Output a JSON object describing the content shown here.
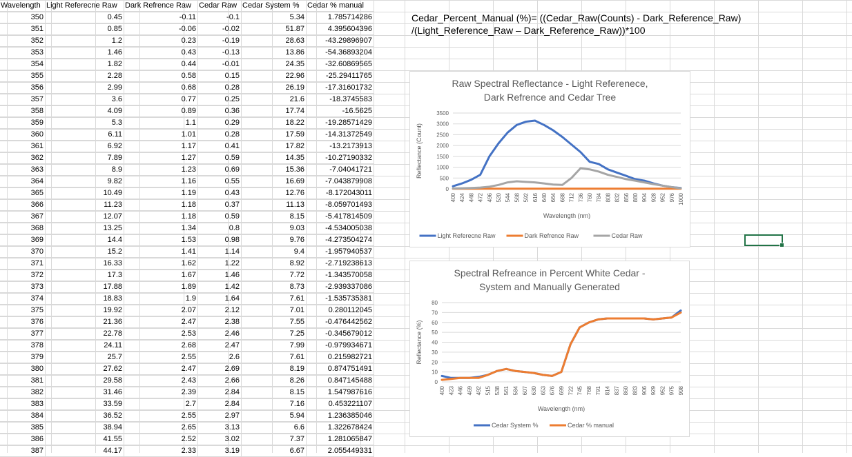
{
  "table": {
    "headers": [
      "Wavelength",
      "Light Referecne Raw",
      "Dark Refrence Raw",
      "Cedar Raw",
      "Cedar System  %",
      "Cedar % manual"
    ],
    "rows": [
      [
        "350",
        "0.45",
        "-0.11",
        "-0.1",
        "5.34",
        "1.785714286"
      ],
      [
        "351",
        "0.85",
        "-0.06",
        "-0.02",
        "51.87",
        "4.395604396"
      ],
      [
        "352",
        "1.2",
        "0.23",
        "-0.19",
        "28.63",
        "-43.29896907"
      ],
      [
        "353",
        "1.46",
        "0.43",
        "-0.13",
        "13.86",
        "-54.36893204"
      ],
      [
        "354",
        "1.82",
        "0.44",
        "-0.01",
        "24.35",
        "-32.60869565"
      ],
      [
        "355",
        "2.28",
        "0.58",
        "0.15",
        "22.96",
        "-25.29411765"
      ],
      [
        "356",
        "2.99",
        "0.68",
        "0.28",
        "26.19",
        "-17.31601732"
      ],
      [
        "357",
        "3.6",
        "0.77",
        "0.25",
        "21.6",
        "-18.3745583"
      ],
      [
        "358",
        "4.09",
        "0.89",
        "0.36",
        "17.74",
        "-16.5625"
      ],
      [
        "359",
        "5.3",
        "1.1",
        "0.29",
        "18.22",
        "-19.28571429"
      ],
      [
        "360",
        "6.11",
        "1.01",
        "0.28",
        "17.59",
        "-14.31372549"
      ],
      [
        "361",
        "6.92",
        "1.17",
        "0.41",
        "17.82",
        "-13.2173913"
      ],
      [
        "362",
        "7.89",
        "1.27",
        "0.59",
        "14.35",
        "-10.27190332"
      ],
      [
        "363",
        "8.9",
        "1.23",
        "0.69",
        "15.36",
        "-7.04041721"
      ],
      [
        "364",
        "9.82",
        "1.16",
        "0.55",
        "16.69",
        "-7.043879908"
      ],
      [
        "365",
        "10.49",
        "1.19",
        "0.43",
        "12.76",
        "-8.172043011"
      ],
      [
        "366",
        "11.23",
        "1.18",
        "0.37",
        "11.13",
        "-8.059701493"
      ],
      [
        "367",
        "12.07",
        "1.18",
        "0.59",
        "8.15",
        "-5.417814509"
      ],
      [
        "368",
        "13.25",
        "1.34",
        "0.8",
        "9.03",
        "-4.534005038"
      ],
      [
        "369",
        "14.4",
        "1.53",
        "0.98",
        "9.76",
        "-4.273504274"
      ],
      [
        "370",
        "15.2",
        "1.41",
        "1.14",
        "9.4",
        "-1.957940537"
      ],
      [
        "371",
        "16.33",
        "1.62",
        "1.22",
        "8.92",
        "-2.719238613"
      ],
      [
        "372",
        "17.3",
        "1.67",
        "1.46",
        "7.72",
        "-1.343570058"
      ],
      [
        "373",
        "17.88",
        "1.89",
        "1.42",
        "8.73",
        "-2.939337086"
      ],
      [
        "374",
        "18.83",
        "1.9",
        "1.64",
        "7.61",
        "-1.535735381"
      ],
      [
        "375",
        "19.92",
        "2.07",
        "2.12",
        "7.01",
        "0.280112045"
      ],
      [
        "376",
        "21.36",
        "2.47",
        "2.38",
        "7.55",
        "-0.476442562"
      ],
      [
        "377",
        "22.78",
        "2.53",
        "2.46",
        "7.25",
        "-0.345679012"
      ],
      [
        "378",
        "24.11",
        "2.68",
        "2.47",
        "7.99",
        "-0.979934671"
      ],
      [
        "379",
        "25.7",
        "2.55",
        "2.6",
        "7.61",
        "0.215982721"
      ],
      [
        "380",
        "27.62",
        "2.47",
        "2.69",
        "8.19",
        "0.874751491"
      ],
      [
        "381",
        "29.58",
        "2.43",
        "2.66",
        "8.26",
        "0.847145488"
      ],
      [
        "382",
        "31.46",
        "2.39",
        "2.84",
        "8.15",
        "1.547987616"
      ],
      [
        "383",
        "33.59",
        "2.7",
        "2.84",
        "7.16",
        "0.453221107"
      ],
      [
        "384",
        "36.52",
        "2.55",
        "2.97",
        "5.94",
        "1.236385046"
      ],
      [
        "385",
        "38.94",
        "2.65",
        "3.13",
        "6.6",
        "1.322678424"
      ],
      [
        "386",
        "41.55",
        "2.52",
        "3.02",
        "7.37",
        "1.281065847"
      ],
      [
        "387",
        "44.17",
        "2.33",
        "3.19",
        "6.67",
        "2.055449331"
      ]
    ]
  },
  "formula": {
    "line1": "Cedar_Percent_Manual (%)= ((Cedar_Raw(Counts) - Dark_Reference_Raw)",
    "line2": "/(Light_Reference_Raw – Dark_Reference_Raw))*100"
  },
  "chart_data": [
    {
      "type": "line",
      "title": [
        "Raw Spectral Reflectance - Light Referenece,",
        "Dark Refrence and Cedar Tree"
      ],
      "xlabel": "Wavelength (nm)",
      "ylabel": "Reflectance (Count)",
      "ylim": [
        0,
        3500
      ],
      "yticks": [
        0,
        500,
        1000,
        1500,
        2000,
        2500,
        3000,
        3500
      ],
      "xticks": [
        "400",
        "424",
        "448",
        "472",
        "496",
        "520",
        "544",
        "568",
        "592",
        "616",
        "640",
        "664",
        "688",
        "712",
        "736",
        "760",
        "784",
        "808",
        "832",
        "856",
        "880",
        "904",
        "928",
        "952",
        "976",
        "1000"
      ],
      "legend_position": "bottom",
      "series": [
        {
          "name": "Light Referecne Raw",
          "color": "#4472c4",
          "x": [
            400,
            424,
            448,
            472,
            496,
            520,
            544,
            568,
            592,
            616,
            640,
            664,
            688,
            712,
            736,
            760,
            784,
            808,
            832,
            856,
            880,
            904,
            928,
            952,
            976,
            1000
          ],
          "y": [
            120,
            250,
            420,
            650,
            1500,
            2100,
            2600,
            2950,
            3100,
            3150,
            2950,
            2700,
            2400,
            2050,
            1700,
            1250,
            1150,
            900,
            750,
            600,
            450,
            380,
            250,
            150,
            80,
            40
          ]
        },
        {
          "name": "Dark Refrence Raw",
          "color": "#ed7d31",
          "x": [
            400,
            424,
            448,
            472,
            496,
            520,
            544,
            568,
            592,
            616,
            640,
            664,
            688,
            712,
            736,
            760,
            784,
            808,
            832,
            856,
            880,
            904,
            928,
            952,
            976,
            1000
          ],
          "y": [
            5,
            5,
            5,
            5,
            5,
            5,
            5,
            5,
            5,
            5,
            5,
            5,
            5,
            5,
            5,
            5,
            5,
            5,
            5,
            5,
            5,
            5,
            5,
            5,
            5,
            5
          ]
        },
        {
          "name": "Cedar Raw",
          "color": "#a5a5a5",
          "x": [
            400,
            424,
            448,
            472,
            496,
            520,
            544,
            568,
            592,
            616,
            640,
            664,
            688,
            712,
            736,
            760,
            784,
            808,
            832,
            856,
            880,
            904,
            928,
            952,
            976,
            1000
          ],
          "y": [
            20,
            30,
            40,
            60,
            100,
            180,
            300,
            350,
            320,
            300,
            250,
            200,
            180,
            500,
            950,
            900,
            800,
            650,
            550,
            450,
            380,
            300,
            220,
            150,
            80,
            30
          ]
        }
      ]
    },
    {
      "type": "line",
      "title": [
        "Spectral Refreance in Percent White Cedar -",
        "System and Manually Generated"
      ],
      "xlabel": "Wavelength (nm)",
      "ylabel": "Reflectance (%)",
      "ylim": [
        0,
        80
      ],
      "yticks": [
        0,
        10,
        20,
        30,
        40,
        50,
        60,
        70,
        80
      ],
      "xticks": [
        "400",
        "423",
        "446",
        "469",
        "492",
        "515",
        "538",
        "561",
        "584",
        "607",
        "630",
        "653",
        "676",
        "699",
        "722",
        "745",
        "768",
        "791",
        "814",
        "837",
        "860",
        "883",
        "906",
        "929",
        "952",
        "975",
        "998"
      ],
      "legend_position": "bottom",
      "series": [
        {
          "name": "Cedar System  %",
          "color": "#4472c4",
          "x": [
            400,
            423,
            446,
            469,
            492,
            515,
            538,
            561,
            584,
            607,
            630,
            653,
            676,
            699,
            722,
            745,
            768,
            791,
            814,
            837,
            860,
            883,
            906,
            929,
            952,
            975,
            998
          ],
          "y": [
            6,
            4,
            4,
            4,
            5,
            7,
            11,
            13,
            11,
            10,
            9,
            7,
            6,
            10,
            38,
            55,
            60,
            63,
            64,
            64,
            64,
            64,
            64,
            63,
            64,
            65,
            72
          ]
        },
        {
          "name": "Cedar % manual",
          "color": "#ed7d31",
          "x": [
            400,
            423,
            446,
            469,
            492,
            515,
            538,
            561,
            584,
            607,
            630,
            653,
            676,
            699,
            722,
            745,
            768,
            791,
            814,
            837,
            860,
            883,
            906,
            929,
            952,
            975,
            998
          ],
          "y": [
            2,
            3,
            4,
            4,
            4,
            7,
            11,
            13,
            11,
            10,
            9,
            7,
            6,
            10,
            38,
            55,
            60,
            63,
            64,
            64,
            64,
            64,
            64,
            63,
            64,
            65,
            70
          ]
        }
      ]
    }
  ]
}
